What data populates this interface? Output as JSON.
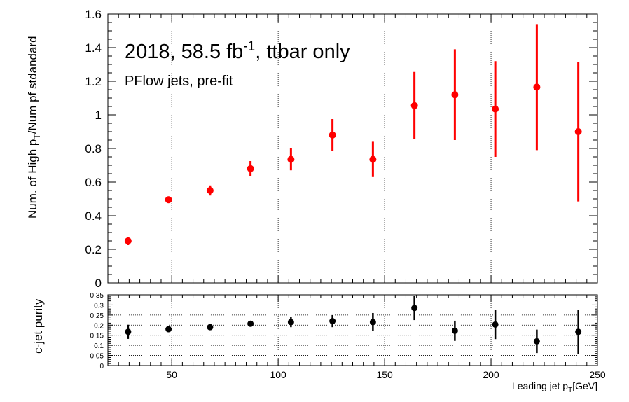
{
  "chart_data": [
    {
      "type": "scatter",
      "title": "2018, 58.5 fb",
      "title_sup": "-1",
      "title_suffix": ", ttbar only",
      "subtitle": "PFlow jets, pre-fit",
      "ylabel_a": "Num. of High p",
      "ylabel_sub": "T",
      "ylabel_b": "/Num pf stdandard",
      "xlim": [
        20,
        250
      ],
      "ylim": [
        0,
        1.6
      ],
      "grid": "vertical dotted lines at x ticks",
      "marker_color": "#ff0000",
      "yticks": [
        "0",
        "0.2",
        "0.4",
        "0.6",
        "0.8",
        "1",
        "1.2",
        "1.4",
        "1.6"
      ],
      "points": [
        {
          "x": 29.5,
          "y": 0.25,
          "err": 0.025
        },
        {
          "x": 48.5,
          "y": 0.495,
          "err": 0.02
        },
        {
          "x": 68,
          "y": 0.55,
          "err": 0.03
        },
        {
          "x": 87,
          "y": 0.68,
          "err": 0.045
        },
        {
          "x": 106,
          "y": 0.735,
          "err": 0.065
        },
        {
          "x": 125.5,
          "y": 0.88,
          "err": 0.095
        },
        {
          "x": 144.5,
          "y": 0.735,
          "err": 0.105
        },
        {
          "x": 164,
          "y": 1.055,
          "err": 0.2
        },
        {
          "x": 183,
          "y": 1.12,
          "err": 0.27
        },
        {
          "x": 202,
          "y": 1.035,
          "err": 0.285
        },
        {
          "x": 221.5,
          "y": 1.165,
          "err": 0.375
        },
        {
          "x": 241,
          "y": 0.9,
          "err": 0.415
        }
      ]
    },
    {
      "type": "scatter",
      "ylabel": "c-jet purity",
      "xlabel_a": "Leading jet p",
      "xlabel_sub": "T",
      "xlabel_b": "[GeV]",
      "xlim": [
        20,
        250
      ],
      "ylim": [
        0,
        0.35
      ],
      "grid": "dotted horizontal lines at y ticks, dotted vertical lines at x ticks",
      "marker_color": "#000000",
      "xticks": [
        "50",
        "100",
        "150",
        "200",
        "250"
      ],
      "yticks": [
        "0",
        "0.05",
        "0.1",
        "0.15",
        "0.2",
        "0.25",
        "0.3",
        "0.35"
      ],
      "points": [
        {
          "x": 29.5,
          "y": 0.167,
          "err": 0.035
        },
        {
          "x": 48.5,
          "y": 0.18,
          "err": 0.01
        },
        {
          "x": 68,
          "y": 0.19,
          "err": 0.01
        },
        {
          "x": 87,
          "y": 0.207,
          "err": 0.012
        },
        {
          "x": 106,
          "y": 0.215,
          "err": 0.025
        },
        {
          "x": 125.5,
          "y": 0.22,
          "err": 0.03
        },
        {
          "x": 144.5,
          "y": 0.215,
          "err": 0.045
        },
        {
          "x": 164,
          "y": 0.285,
          "err": 0.06
        },
        {
          "x": 183,
          "y": 0.172,
          "err": 0.05
        },
        {
          "x": 202,
          "y": 0.203,
          "err": 0.072
        },
        {
          "x": 221.5,
          "y": 0.12,
          "err": 0.058
        },
        {
          "x": 241,
          "y": 0.167,
          "err": 0.11
        }
      ]
    }
  ]
}
